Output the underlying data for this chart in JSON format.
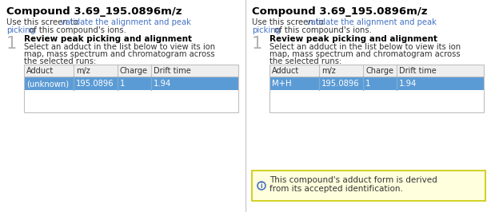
{
  "title": "Compound 3.69_195.0896m/z",
  "subtitle_plain1": "Use this screen to ",
  "subtitle_link": "validate the alignment and peak",
  "subtitle_link2": "picking",
  "subtitle_end": " of this compound's ions.",
  "step_number": "1",
  "step_heading": "Review peak picking and alignment",
  "step_body_line1": "Select an adduct in the list below to view its ion",
  "step_body_line2": "map, mass spectrum and chromatogram across",
  "step_body_line3": "the selected runs:",
  "table_headers": [
    "Adduct",
    "m/z",
    "Charge",
    "Drift time"
  ],
  "left_row": [
    "(unknown)",
    "195.0896",
    "1",
    "1.94"
  ],
  "right_row": [
    "M+H",
    "195.0896",
    "1",
    "1.94"
  ],
  "row_highlight_color": "#5b9bd5",
  "row_text_color": "#ffffff",
  "header_bg": "#efefef",
  "table_border_color": "#c0c0c0",
  "title_color": "#000000",
  "body_color": "#333333",
  "link_color": "#4472c4",
  "step_num_color": "#b0b0b0",
  "notification_bg": "#ffffdd",
  "notification_border": "#c8c800",
  "notification_text_line1": "This compound's adduct form is derived",
  "notification_text_line2": "from its accepted identification.",
  "notification_icon_color": "#4472c4",
  "bg_color": "#ffffff",
  "divider_color": "#cccccc"
}
